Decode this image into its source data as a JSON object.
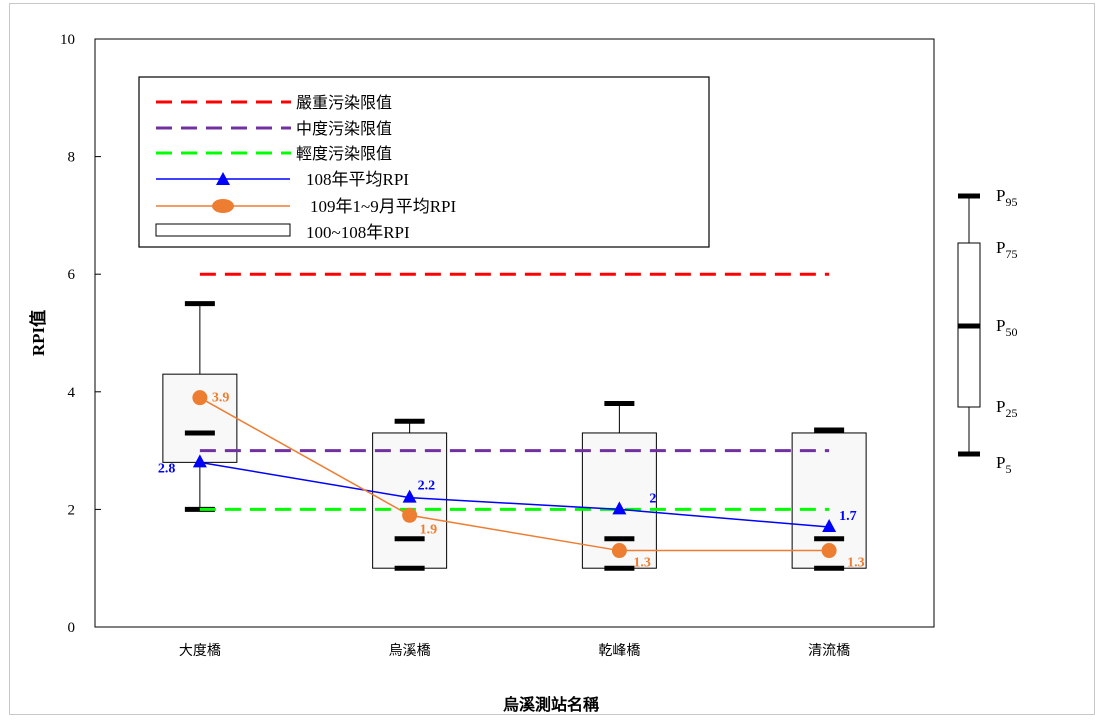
{
  "chart_data": {
    "type": "box",
    "xlabel": "烏溪測站名稱",
    "ylabel": "RPI值",
    "ylim": [
      0,
      10
    ],
    "yticks": [
      "0",
      "2",
      "4",
      "6",
      "8",
      "10"
    ],
    "categories": [
      "大度橋",
      "烏溪橋",
      "乾峰橋",
      "清流橋"
    ],
    "legend_placement": "top-left",
    "legend": {
      "severe": "嚴重污染限值",
      "moderate": "中度污染限值",
      "light": "輕度污染限值",
      "avg108": "108年平均RPI",
      "avg109": "109年1~9月平均RPI",
      "box": "100~108年RPI"
    },
    "thresholds": [
      {
        "key": "severe",
        "value": 6,
        "color": "#ff0000"
      },
      {
        "key": "moderate",
        "value": 3,
        "color": "#7030a0"
      },
      {
        "key": "light",
        "value": 2,
        "color": "#00ff00"
      }
    ],
    "boxes": [
      {
        "p5": 2.0,
        "p25": 2.8,
        "p50": 3.3,
        "p75": 4.3,
        "p95": 5.5
      },
      {
        "p5": 1.0,
        "p25": 1.0,
        "p50": 1.5,
        "p75": 3.3,
        "p95": 3.5
      },
      {
        "p5": 1.0,
        "p25": 1.0,
        "p50": 1.5,
        "p75": 3.3,
        "p95": 3.8
      },
      {
        "p5": 1.0,
        "p25": 1.0,
        "p50": 1.5,
        "p75": 3.3,
        "p95": 3.35
      }
    ],
    "series": [
      {
        "key": "avg108",
        "marker": "triangle",
        "color": "#0000ff",
        "values": [
          2.8,
          2.2,
          2.0,
          1.7
        ],
        "labels": [
          "2.8",
          "2.2",
          "2",
          "1.7"
        ]
      },
      {
        "key": "avg109",
        "marker": "circle",
        "color": "#ed7d31",
        "values": [
          3.9,
          1.9,
          1.3,
          1.3
        ],
        "labels": [
          "3.9",
          "1.9",
          "1.3",
          "1.3"
        ]
      }
    ],
    "box_key": {
      "labels": [
        {
          "base": "P",
          "sub": "95"
        },
        {
          "base": "P",
          "sub": "75"
        },
        {
          "base": "P",
          "sub": "50"
        },
        {
          "base": "P",
          "sub": "25"
        },
        {
          "base": "P",
          "sub": "5"
        }
      ]
    }
  }
}
